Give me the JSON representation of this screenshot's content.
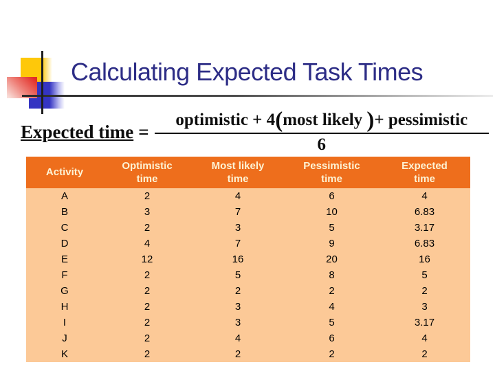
{
  "title": "Calculating Expected Task Times",
  "formula": {
    "lhs": "Expected time",
    "equals": "=",
    "numerator_prefix": "optimistic + 4",
    "paren_open": "(",
    "numerator_inner": "most likely ",
    "paren_close": ")",
    "numerator_suffix": "+ pessimistic",
    "denominator": "6"
  },
  "table": {
    "columns": [
      "Activity",
      "Optimistic\ntime",
      "Most likely\ntime",
      "Pessimistic\ntime",
      "Expected\ntime"
    ],
    "rows": [
      [
        "A",
        "2",
        "4",
        "6",
        "4"
      ],
      [
        "B",
        "3",
        "7",
        "10",
        "6.83"
      ],
      [
        "C",
        "2",
        "3",
        "5",
        "3.17"
      ],
      [
        "D",
        "4",
        "7",
        "9",
        "6.83"
      ],
      [
        "E",
        "12",
        "16",
        "20",
        "16"
      ],
      [
        "F",
        "2",
        "5",
        "8",
        "5"
      ],
      [
        "G",
        "2",
        "2",
        "2",
        "2"
      ],
      [
        "H",
        "2",
        "3",
        "4",
        "3"
      ],
      [
        "I",
        "2",
        "3",
        "5",
        "3.17"
      ],
      [
        "J",
        "2",
        "4",
        "6",
        "4"
      ],
      [
        "K",
        "2",
        "2",
        "2",
        "2"
      ]
    ]
  },
  "chart_data": {
    "type": "table",
    "title": "Calculating Expected Task Times",
    "columns": [
      "Activity",
      "Optimistic time",
      "Most likely time",
      "Pessimistic time",
      "Expected time"
    ],
    "rows": [
      [
        "A",
        2,
        4,
        6,
        4
      ],
      [
        "B",
        3,
        7,
        10,
        6.83
      ],
      [
        "C",
        2,
        3,
        5,
        3.17
      ],
      [
        "D",
        4,
        7,
        9,
        6.83
      ],
      [
        "E",
        12,
        16,
        20,
        16
      ],
      [
        "F",
        2,
        5,
        8,
        5
      ],
      [
        "G",
        2,
        2,
        2,
        2
      ],
      [
        "H",
        2,
        3,
        4,
        3
      ],
      [
        "I",
        2,
        3,
        5,
        3.17
      ],
      [
        "J",
        2,
        4,
        6,
        4
      ],
      [
        "K",
        2,
        2,
        2,
        2
      ]
    ]
  },
  "colors": {
    "title_text": "#2d2d86",
    "header_bg": "#ee6e1c",
    "header_text": "#fdf3d5",
    "body_bg": "#fcc997",
    "accent_yellow": "#fec80a",
    "accent_red": "#e22d26",
    "accent_blue": "#3434c2"
  }
}
